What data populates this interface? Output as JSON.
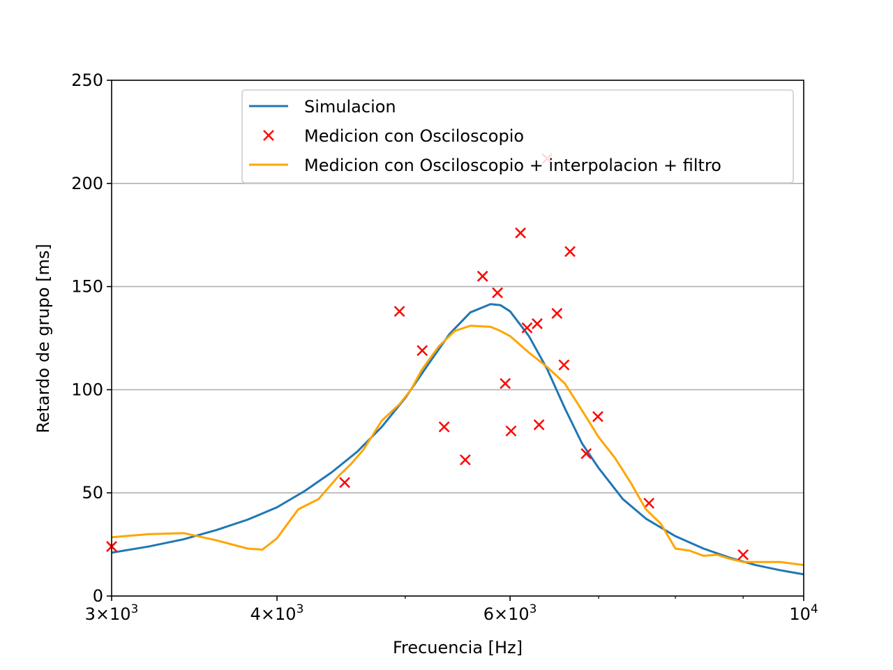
{
  "chart_data": {
    "type": "line",
    "xlabel": "Frecuencia [Hz]",
    "ylabel": "Retardo de grupo [ms]",
    "x_scale": "log",
    "xlim": [
      3000,
      10000
    ],
    "ylim": [
      0,
      250
    ],
    "grid": "horizontal",
    "legend_placement": "top-center",
    "x_ticks": [
      {
        "value": 3000,
        "mantissa": "3",
        "exp": "3"
      },
      {
        "value": 4000,
        "mantissa": "4",
        "exp": "3"
      },
      {
        "value": 6000,
        "mantissa": "6",
        "exp": "3"
      },
      {
        "value": 10000,
        "mantissa": "",
        "exp": "4"
      }
    ],
    "x_minor_ticks": [
      5000,
      7000,
      8000,
      9000
    ],
    "y_ticks": [
      0,
      50,
      100,
      150,
      200,
      250
    ],
    "series": [
      {
        "name": "Simulacion",
        "kind": "line",
        "color": "#1f77b4",
        "x": [
          3000,
          3200,
          3400,
          3600,
          3800,
          4000,
          4200,
          4400,
          4600,
          4800,
          5000,
          5200,
          5400,
          5600,
          5800,
          5900,
          6000,
          6200,
          6400,
          6600,
          6800,
          7000,
          7300,
          7600,
          8000,
          8400,
          8800,
          9200,
          9600,
          10000
        ],
        "y": [
          21,
          24,
          27.5,
          32,
          37,
          43,
          51,
          60,
          70,
          82,
          96,
          112,
          127,
          137.5,
          141.5,
          141,
          138,
          126,
          110,
          91,
          74,
          62,
          47,
          37.5,
          29,
          23,
          18.5,
          15,
          12.5,
          10.5
        ]
      },
      {
        "name": "Medicion con Osciloscopio",
        "kind": "scatter",
        "color": "#ff0000",
        "x": [
          3000,
          4500,
          4950,
          5150,
          5350,
          5550,
          5720,
          5870,
          5950,
          6010,
          6110,
          6180,
          6290,
          6310,
          6400,
          6510,
          6590,
          6660,
          6850,
          6990,
          7640,
          9000
        ],
        "y": [
          24,
          55,
          138,
          119,
          82,
          66,
          155,
          147,
          103,
          80,
          176,
          130,
          132,
          83,
          212,
          137,
          112,
          167,
          69,
          87,
          45,
          20
        ]
      },
      {
        "name": "Medicion con Osciloscopio + interpolacion + filtro",
        "kind": "line",
        "color": "#ffa500",
        "x": [
          3000,
          3200,
          3400,
          3600,
          3800,
          3900,
          4000,
          4150,
          4300,
          4450,
          4550,
          4650,
          4800,
          4950,
          5050,
          5150,
          5300,
          5450,
          5600,
          5800,
          5900,
          6000,
          6200,
          6400,
          6600,
          6800,
          7000,
          7200,
          7400,
          7600,
          7800,
          8000,
          8200,
          8400,
          8600,
          8800,
          9000,
          9300,
          9600,
          10000
        ],
        "y": [
          28.5,
          30,
          30.5,
          27,
          23,
          22.5,
          28,
          42,
          47,
          58,
          64,
          71,
          85,
          93,
          100,
          110,
          121,
          128.5,
          131,
          130.5,
          128.5,
          126,
          118,
          111,
          103,
          90,
          77,
          67,
          55,
          42,
          35,
          23,
          22,
          19.5,
          20,
          18,
          16.5,
          16.5,
          16.5,
          15
        ]
      }
    ]
  }
}
